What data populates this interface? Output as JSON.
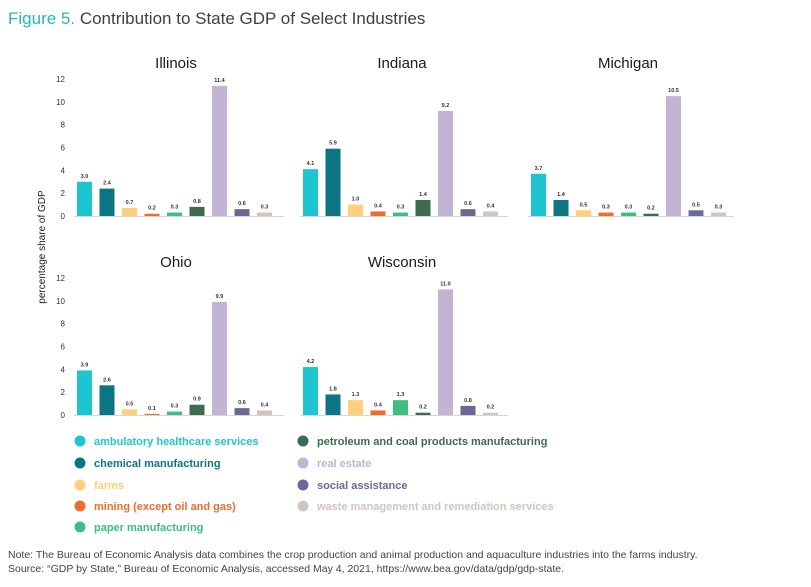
{
  "figure": {
    "number": "Figure 5.",
    "title": "Contribution to State GDP of Select Industries"
  },
  "chart_data": {
    "type": "bar",
    "ylabel": "percentage share of GDP",
    "ylim": [
      0,
      12
    ],
    "yticks": [
      0,
      2,
      4,
      6,
      8,
      10,
      12
    ],
    "categories": [
      "ambulatory healthcare services",
      "chemical manufacturing",
      "farms",
      "mining (except oil and gas)",
      "paper manufacturing",
      "petroleum and coal products manufacturing",
      "real estate",
      "social assistance",
      "waste management and remediation services"
    ],
    "colors": [
      "#1fc4d1",
      "#0b7584",
      "#ffcf7a",
      "#f26b2e",
      "#3fbf7f",
      "#3d6b4f",
      "#c4b4d3",
      "#6b6996",
      "#cfc7bd"
    ],
    "series": [
      {
        "name": "Illinois",
        "values": [
          3.0,
          2.4,
          0.7,
          0.2,
          0.3,
          0.8,
          11.4,
          0.6,
          0.3
        ]
      },
      {
        "name": "Indiana",
        "values": [
          4.1,
          5.9,
          1.0,
          0.4,
          0.3,
          1.4,
          9.2,
          0.6,
          0.4
        ]
      },
      {
        "name": "Michigan",
        "values": [
          3.7,
          1.4,
          0.5,
          0.3,
          0.3,
          0.2,
          10.5,
          0.5,
          0.3
        ]
      },
      {
        "name": "Ohio",
        "values": [
          3.9,
          2.6,
          0.5,
          0.1,
          0.3,
          0.9,
          9.9,
          0.6,
          0.4
        ]
      },
      {
        "name": "Wisconsin",
        "values": [
          4.2,
          1.8,
          1.3,
          0.4,
          1.3,
          0.2,
          11.0,
          0.8,
          0.2
        ]
      }
    ]
  },
  "notes": {
    "note": "Note: The Bureau of Economic Analysis data combines the crop production and animal production and aquaculture industries into the farms industry.",
    "source": "Source: “GDP by State,” Bureau of Economic Analysis, accessed May 4, 2021, https://www.bea.gov/data/gdp/gdp-state."
  }
}
